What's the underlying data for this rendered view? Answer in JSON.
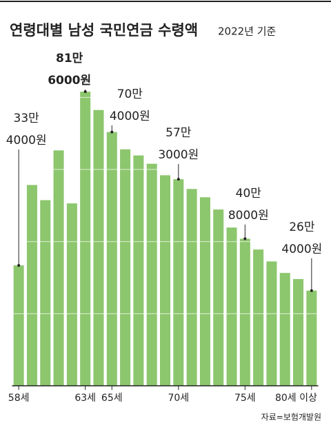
{
  "chart_data": {
    "type": "bar",
    "title": "연령대별 남성 국민연금 수령액",
    "subtitle": "2022년 기준",
    "source": "자료=보험개발원",
    "categories": [
      "58세",
      null,
      null,
      null,
      null,
      "63세",
      null,
      "65세",
      null,
      null,
      null,
      null,
      "70세",
      null,
      null,
      null,
      null,
      "75세",
      null,
      null,
      null,
      null,
      "80세 이상"
    ],
    "values": [
      334000,
      557000,
      515000,
      653000,
      506000,
      816000,
      765000,
      704000,
      656000,
      639000,
      616000,
      584000,
      573000,
      546000,
      523000,
      489000,
      439000,
      408000,
      378000,
      345000,
      313000,
      296000,
      264000
    ],
    "value_labels": [
      [
        "33만",
        "4000원"
      ],
      null,
      null,
      null,
      null,
      [
        "81만",
        "6000원"
      ],
      null,
      [
        "70만",
        "4000원"
      ],
      null,
      null,
      null,
      null,
      [
        "57만",
        "3000원"
      ],
      null,
      null,
      null,
      null,
      [
        "40만",
        "8000원"
      ],
      null,
      null,
      null,
      null,
      [
        "26만",
        "4000원"
      ]
    ],
    "color": "#8cc66d",
    "ylim": [
      0,
      860000
    ],
    "yticks": [
      200000,
      400000,
      600000,
      800000
    ],
    "grid": true
  }
}
